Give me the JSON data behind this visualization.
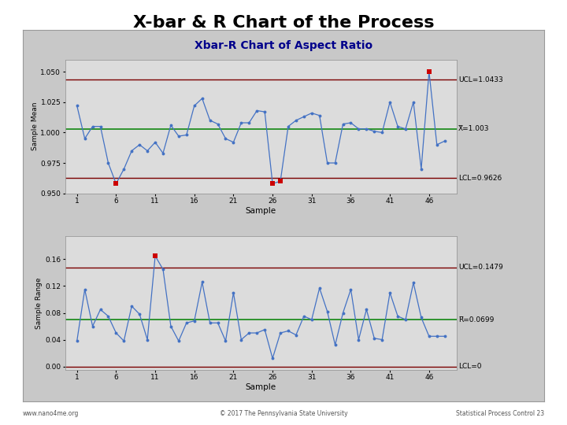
{
  "title": "X-bar & R Chart of the Process",
  "subtitle": "Xbar-R Chart of Aspect Ratio",
  "subtitle_color": "#00008B",
  "background_color": "#C8C8C8",
  "plot_bg_color": "#DCDCDC",
  "outer_bg_color": "#C8C8C8",
  "xbar_ylabel": "Sample Mean",
  "r_ylabel": "Sample Range",
  "xlabel": "Sample",
  "xbar_ucl": 1.0433,
  "xbar_cl": 1.003,
  "xbar_lcl": 0.9626,
  "r_ucl": 0.1479,
  "r_cl": 0.0699,
  "r_lcl": 0.0,
  "xbar_ylim": [
    0.95,
    1.06
  ],
  "r_ylim": [
    -0.005,
    0.195
  ],
  "xbar_yticks": [
    0.95,
    0.975,
    1.0,
    1.025,
    1.05
  ],
  "r_yticks": [
    0.0,
    0.04,
    0.08,
    0.12,
    0.16
  ],
  "xticks": [
    1,
    6,
    11,
    16,
    21,
    26,
    31,
    36,
    41,
    46
  ],
  "line_color": "#4472C4",
  "marker_color": "#4472C4",
  "cl_color": "#008000",
  "limit_color": "#7B0000",
  "ooc_color": "#CC0000",
  "footer_left": "www.nano4me.org",
  "footer_center": "© 2017 The Pennsylvania State University",
  "footer_right": "Statistical Process Control 23",
  "xbar_data": [
    1.022,
    0.995,
    1.005,
    1.005,
    0.975,
    0.958,
    0.97,
    0.985,
    0.99,
    0.985,
    0.992,
    0.983,
    1.006,
    0.997,
    0.998,
    1.022,
    1.028,
    1.01,
    1.007,
    0.995,
    0.992,
    1.008,
    1.008,
    1.018,
    1.017,
    0.958,
    0.96,
    1.005,
    1.01,
    1.013,
    1.016,
    1.014,
    0.975,
    0.975,
    1.007,
    1.008,
    1.003,
    1.003,
    1.001,
    1.0,
    1.025,
    1.005,
    1.003,
    1.025,
    0.97,
    1.05,
    0.99,
    0.993
  ],
  "r_data": [
    0.038,
    0.115,
    0.06,
    0.085,
    0.075,
    0.05,
    0.038,
    0.09,
    0.078,
    0.04,
    0.165,
    0.145,
    0.06,
    0.038,
    0.065,
    0.068,
    0.126,
    0.065,
    0.065,
    0.038,
    0.11,
    0.04,
    0.05,
    0.05,
    0.055,
    0.012,
    0.05,
    0.053,
    0.047,
    0.075,
    0.07,
    0.117,
    0.082,
    0.032,
    0.08,
    0.115,
    0.04,
    0.085,
    0.042,
    0.04,
    0.11,
    0.075,
    0.07,
    0.125,
    0.073,
    0.045,
    0.045,
    0.045
  ]
}
